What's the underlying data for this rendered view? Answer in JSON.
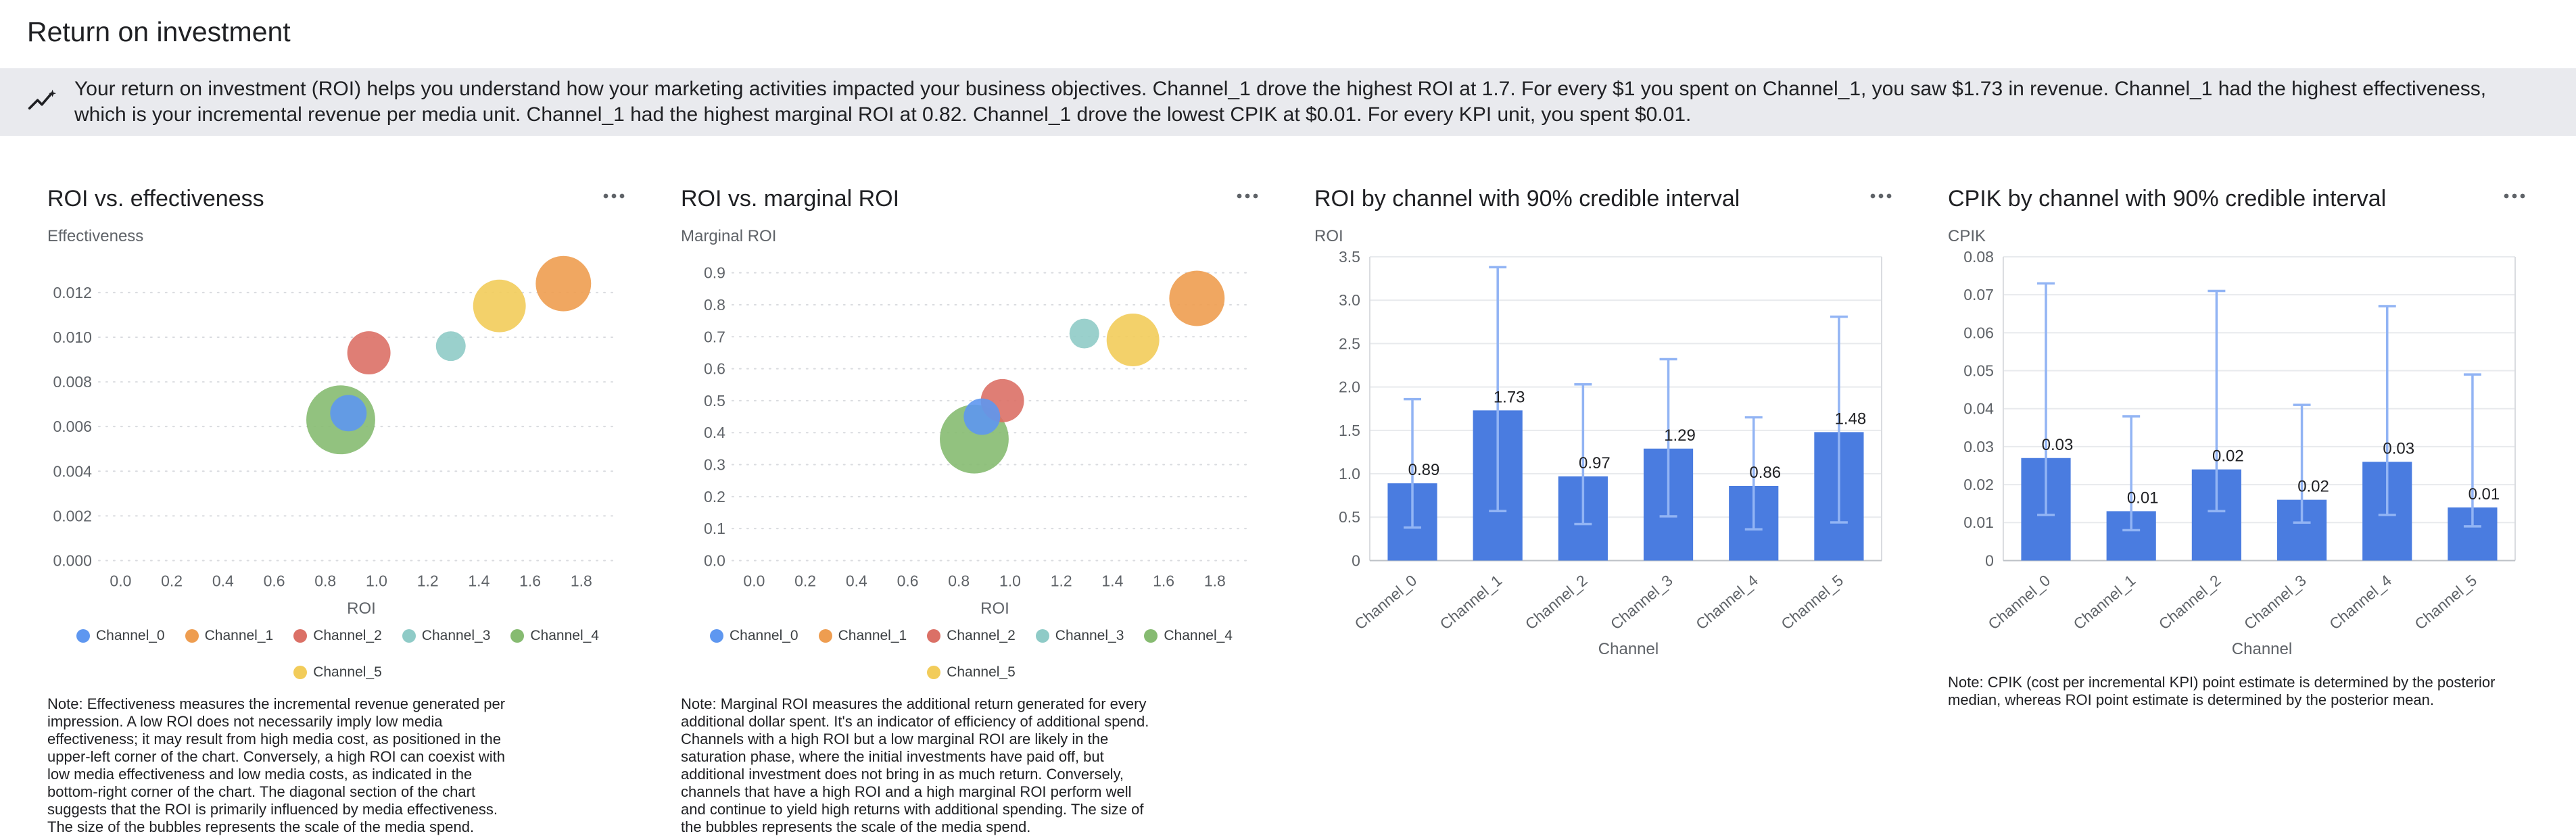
{
  "page": {
    "title": "Return on investment"
  },
  "insight_banner": {
    "icon": "insight-icon",
    "text": "Your return on investment (ROI) helps you understand how your marketing activities impacted your business objectives. Channel_1 drove the highest ROI at 1.7. For every $1 you spent on Channel_1, you saw $1.73 in revenue. Channel_1 had the highest effectiveness, which is your incremental revenue per media unit. Channel_1 had the highest marginal ROI at 0.82. Channel_1 drove the lowest CPIK at $0.01. For every KPI unit, you spent $0.01."
  },
  "colors": {
    "bar": "#4A7CE0",
    "ci": "#92B4F4",
    "channel_colors": {
      "Channel_0": "#5E97F0",
      "Channel_1": "#EE9D50",
      "Channel_2": "#DB7066",
      "Channel_3": "#8FCBC7",
      "Channel_4": "#86BB71",
      "Channel_5": "#F2CC5A"
    }
  },
  "chart_data": [
    {
      "id": "roi-vs-effectiveness",
      "type": "bubble",
      "title": "ROI vs. effectiveness",
      "y_axis_label": "Effectiveness",
      "x_axis_label": "ROI",
      "x_range": [
        -0.07,
        1.93
      ],
      "x_ticks": [
        0,
        0.2,
        0.4,
        0.6,
        0.8,
        1.0,
        1.2,
        1.4,
        1.6,
        1.8
      ],
      "x_decimals": 1,
      "y_range": [
        0,
        0.0136
      ],
      "y_ticks": [
        0,
        0.002,
        0.004,
        0.006,
        0.008,
        0.01,
        0.012
      ],
      "y_decimals": 3,
      "points": [
        {
          "channel": "Channel_0",
          "x": 0.89,
          "y": 0.0066,
          "r": 27
        },
        {
          "channel": "Channel_1",
          "x": 1.73,
          "y": 0.0124,
          "r": 41
        },
        {
          "channel": "Channel_2",
          "x": 0.97,
          "y": 0.0093,
          "r": 32
        },
        {
          "channel": "Channel_3",
          "x": 1.29,
          "y": 0.0096,
          "r": 22
        },
        {
          "channel": "Channel_4",
          "x": 0.86,
          "y": 0.0063,
          "r": 51
        },
        {
          "channel": "Channel_5",
          "x": 1.48,
          "y": 0.0114,
          "r": 39
        }
      ],
      "legend": [
        "Channel_0",
        "Channel_1",
        "Channel_2",
        "Channel_3",
        "Channel_4",
        "Channel_5"
      ],
      "note": "Note: Effectiveness measures the incremental revenue generated per impression. A low ROI does not necessarily imply low media effectiveness; it may result from high media cost, as positioned in the upper-left corner of the chart. Conversely, a high ROI can coexist with low media effectiveness and low media costs, as indicated in the bottom-right corner of the chart. The diagonal section of the chart suggests that the ROI is primarily influenced by media effectiveness. The size of the bubbles represents the scale of the media spend."
    },
    {
      "id": "roi-vs-marginal-roi",
      "type": "bubble",
      "title": "ROI vs. marginal ROI",
      "y_axis_label": "Marginal ROI",
      "x_axis_label": "ROI",
      "x_range": [
        -0.07,
        1.93
      ],
      "x_ticks": [
        0,
        0.2,
        0.4,
        0.6,
        0.8,
        1.0,
        1.2,
        1.4,
        1.6,
        1.8
      ],
      "x_decimals": 1,
      "y_range": [
        0,
        0.95
      ],
      "y_ticks": [
        0,
        0.1,
        0.2,
        0.3,
        0.4,
        0.5,
        0.6,
        0.7,
        0.8,
        0.9
      ],
      "y_decimals": 1,
      "points": [
        {
          "channel": "Channel_0",
          "x": 0.89,
          "y": 0.45,
          "r": 27
        },
        {
          "channel": "Channel_1",
          "x": 1.73,
          "y": 0.82,
          "r": 41
        },
        {
          "channel": "Channel_2",
          "x": 0.97,
          "y": 0.5,
          "r": 32
        },
        {
          "channel": "Channel_3",
          "x": 1.29,
          "y": 0.71,
          "r": 22
        },
        {
          "channel": "Channel_4",
          "x": 0.86,
          "y": 0.38,
          "r": 51
        },
        {
          "channel": "Channel_5",
          "x": 1.48,
          "y": 0.69,
          "r": 39
        }
      ],
      "legend": [
        "Channel_0",
        "Channel_1",
        "Channel_2",
        "Channel_3",
        "Channel_4",
        "Channel_5"
      ],
      "note": "Note: Marginal ROI measures the additional return generated for every additional dollar spent. It's an indicator of efficiency of additional spend. Channels with a high ROI but a low marginal ROI are likely in the saturation phase, where the initial investments have paid off, but additional investment does not bring in as much return. Conversely, channels that have a high ROI and a high marginal ROI perform well and continue to yield high returns with additional spending. The size of the bubbles represents the scale of the media spend."
    },
    {
      "id": "roi-by-channel",
      "type": "bar",
      "title": "ROI by channel with 90% credible interval",
      "y_axis_label": "ROI",
      "x_axis_label": "Channel",
      "categories": [
        "Channel_0",
        "Channel_1",
        "Channel_2",
        "Channel_3",
        "Channel_4",
        "Channel_5"
      ],
      "values": [
        0.89,
        1.73,
        0.97,
        1.29,
        0.86,
        1.48
      ],
      "value_labels": [
        "0.89",
        "1.73",
        "0.97",
        "1.29",
        "0.86",
        "1.48"
      ],
      "ci_low": [
        0.38,
        0.57,
        0.42,
        0.51,
        0.36,
        0.44
      ],
      "ci_high": [
        1.86,
        3.38,
        2.03,
        2.32,
        1.65,
        2.81
      ],
      "y_range": [
        0,
        3.5
      ],
      "y_ticks": [
        0,
        0.5,
        1.0,
        1.5,
        2.0,
        2.5,
        3.0,
        3.5
      ],
      "y_decimals": 1
    },
    {
      "id": "cpik-by-channel",
      "type": "bar",
      "title": "CPIK by channel with 90% credible interval",
      "y_axis_label": "CPIK",
      "x_axis_label": "Channel",
      "categories": [
        "Channel_0",
        "Channel_1",
        "Channel_2",
        "Channel_3",
        "Channel_4",
        "Channel_5"
      ],
      "values": [
        0.027,
        0.013,
        0.024,
        0.016,
        0.026,
        0.014
      ],
      "value_labels": [
        "0.03",
        "0.01",
        "0.02",
        "0.02",
        "0.03",
        "0.01"
      ],
      "ci_low": [
        0.012,
        0.008,
        0.013,
        0.01,
        0.012,
        0.009
      ],
      "ci_high": [
        0.073,
        0.038,
        0.071,
        0.041,
        0.067,
        0.049
      ],
      "y_range": [
        0,
        0.08
      ],
      "y_ticks": [
        0,
        0.01,
        0.02,
        0.03,
        0.04,
        0.05,
        0.06,
        0.07,
        0.08
      ],
      "y_decimals": 2,
      "note": "Note: CPIK (cost per incremental KPI) point estimate is determined by the posterior median, whereas ROI point estimate is determined by the posterior mean."
    }
  ]
}
